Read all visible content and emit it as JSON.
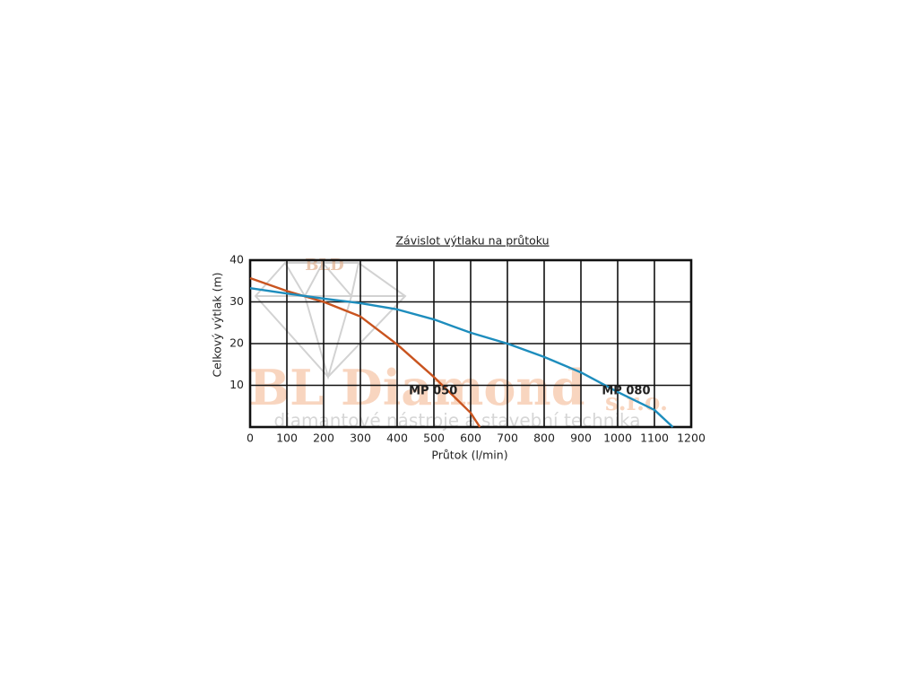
{
  "chart_data": {
    "type": "line",
    "title": "Závislot výtlaku na průtoku",
    "x_label": "Průtok (l/min)",
    "y_label": "Celkový výtlak (m)",
    "xlim": [
      0,
      1200
    ],
    "xticks": [
      0,
      100,
      200,
      300,
      400,
      500,
      600,
      700,
      800,
      900,
      1000,
      1100,
      1200
    ],
    "ylim": [
      0,
      40
    ],
    "yticks": [
      10,
      20,
      30,
      40
    ],
    "grid": true,
    "series": [
      {
        "name": "MP 050",
        "color": "#c9541f",
        "x": [
          0,
          100,
          200,
          300,
          400,
          500,
          600,
          625
        ],
        "values": [
          35.7,
          32.6,
          30,
          26.5,
          19.8,
          12,
          3.4,
          0
        ]
      },
      {
        "name": "MP 080",
        "color": "#1d8dbd",
        "x": [
          0,
          100,
          200,
          300,
          400,
          500,
          600,
          700,
          800,
          900,
          1000,
          1100,
          1150
        ],
        "values": [
          33.3,
          32,
          30.8,
          29.7,
          28.2,
          25.8,
          22.6,
          20,
          16.8,
          13.1,
          8.4,
          4.1,
          0
        ]
      }
    ],
    "watermark": [
      "BLD",
      "BL Diamond",
      "s.r.o.",
      "diamantové nástroje a stavební technika"
    ]
  }
}
